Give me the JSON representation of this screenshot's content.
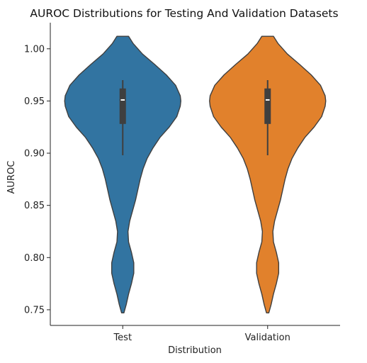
{
  "chart_data": {
    "type": "violin",
    "title": "AUROC Distributions for Testing And Validation Datasets",
    "xlabel": "Distribution",
    "ylabel": "AUROC",
    "categories": [
      "Test",
      "Validation"
    ],
    "ylim": [
      0.735,
      1.025
    ],
    "yticks": [
      0.75,
      0.8,
      0.85,
      0.9,
      0.95,
      1.0
    ],
    "ytick_labels": [
      "0.75",
      "0.80",
      "0.85",
      "0.90",
      "0.95",
      "1.00"
    ],
    "grid": false,
    "series": [
      {
        "category": "Test",
        "color": "#3274a1",
        "box": {
          "whisker_low": 0.898,
          "q1": 0.928,
          "median": 0.951,
          "q3": 0.962,
          "whisker_high": 0.97
        },
        "density": [
          [
            0.747,
            0.02
          ],
          [
            0.755,
            0.06
          ],
          [
            0.765,
            0.1
          ],
          [
            0.775,
            0.15
          ],
          [
            0.785,
            0.19
          ],
          [
            0.795,
            0.19
          ],
          [
            0.805,
            0.15
          ],
          [
            0.815,
            0.1
          ],
          [
            0.825,
            0.09
          ],
          [
            0.835,
            0.12
          ],
          [
            0.845,
            0.17
          ],
          [
            0.855,
            0.22
          ],
          [
            0.865,
            0.26
          ],
          [
            0.875,
            0.3
          ],
          [
            0.885,
            0.35
          ],
          [
            0.895,
            0.42
          ],
          [
            0.905,
            0.52
          ],
          [
            0.915,
            0.64
          ],
          [
            0.925,
            0.8
          ],
          [
            0.935,
            0.93
          ],
          [
            0.945,
            0.99
          ],
          [
            0.95,
            1.0
          ],
          [
            0.955,
            0.99
          ],
          [
            0.965,
            0.91
          ],
          [
            0.975,
            0.75
          ],
          [
            0.985,
            0.55
          ],
          [
            0.995,
            0.34
          ],
          [
            1.005,
            0.18
          ],
          [
            1.012,
            0.1
          ]
        ]
      },
      {
        "category": "Validation",
        "color": "#e1812c",
        "box": {
          "whisker_low": 0.898,
          "q1": 0.928,
          "median": 0.951,
          "q3": 0.962,
          "whisker_high": 0.97
        },
        "density": [
          [
            0.747,
            0.02
          ],
          [
            0.755,
            0.06
          ],
          [
            0.765,
            0.1
          ],
          [
            0.775,
            0.15
          ],
          [
            0.785,
            0.19
          ],
          [
            0.795,
            0.19
          ],
          [
            0.805,
            0.15
          ],
          [
            0.815,
            0.1
          ],
          [
            0.825,
            0.09
          ],
          [
            0.835,
            0.12
          ],
          [
            0.845,
            0.17
          ],
          [
            0.855,
            0.22
          ],
          [
            0.865,
            0.26
          ],
          [
            0.875,
            0.3
          ],
          [
            0.885,
            0.35
          ],
          [
            0.895,
            0.42
          ],
          [
            0.905,
            0.52
          ],
          [
            0.915,
            0.64
          ],
          [
            0.925,
            0.8
          ],
          [
            0.935,
            0.93
          ],
          [
            0.945,
            0.99
          ],
          [
            0.95,
            1.0
          ],
          [
            0.955,
            0.99
          ],
          [
            0.965,
            0.91
          ],
          [
            0.975,
            0.75
          ],
          [
            0.985,
            0.55
          ],
          [
            0.995,
            0.34
          ],
          [
            1.005,
            0.18
          ],
          [
            1.012,
            0.1
          ]
        ]
      }
    ]
  }
}
